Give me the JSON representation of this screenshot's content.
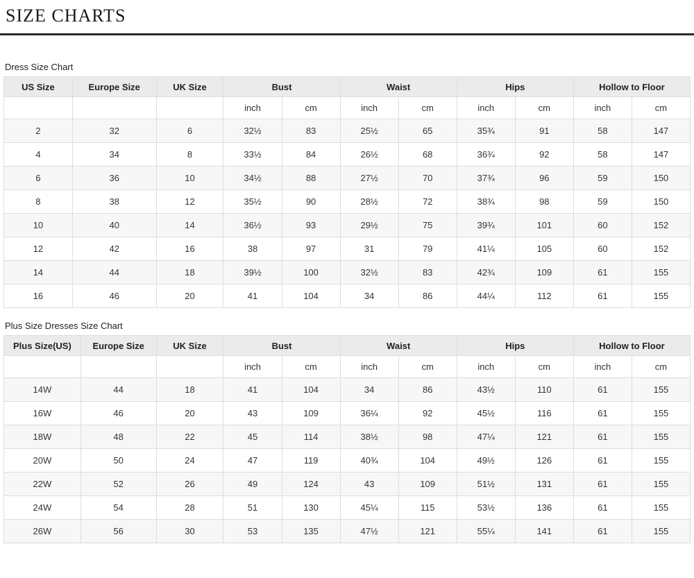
{
  "page": {
    "title": "SIZE CHARTS"
  },
  "tables": [
    {
      "caption": "Dress Size Chart",
      "header_groups": [
        {
          "label": "US Size",
          "span": 1
        },
        {
          "label": "Europe Size",
          "span": 1
        },
        {
          "label": "UK Size",
          "span": 1
        },
        {
          "label": "Bust",
          "span": 2
        },
        {
          "label": "Waist",
          "span": 2
        },
        {
          "label": "Hips",
          "span": 2
        },
        {
          "label": "Hollow to Floor",
          "span": 2
        }
      ],
      "subheader": [
        "",
        "",
        "",
        "inch",
        "cm",
        "inch",
        "cm",
        "inch",
        "cm",
        "inch",
        "cm"
      ],
      "rows": [
        [
          "2",
          "32",
          "6",
          "32½",
          "83",
          "25½",
          "65",
          "35¾",
          "91",
          "58",
          "147"
        ],
        [
          "4",
          "34",
          "8",
          "33½",
          "84",
          "26½",
          "68",
          "36¾",
          "92",
          "58",
          "147"
        ],
        [
          "6",
          "36",
          "10",
          "34½",
          "88",
          "27½",
          "70",
          "37¾",
          "96",
          "59",
          "150"
        ],
        [
          "8",
          "38",
          "12",
          "35½",
          "90",
          "28½",
          "72",
          "38¾",
          "98",
          "59",
          "150"
        ],
        [
          "10",
          "40",
          "14",
          "36½",
          "93",
          "29½",
          "75",
          "39¾",
          "101",
          "60",
          "152"
        ],
        [
          "12",
          "42",
          "16",
          "38",
          "97",
          "31",
          "79",
          "41¼",
          "105",
          "60",
          "152"
        ],
        [
          "14",
          "44",
          "18",
          "39½",
          "100",
          "32½",
          "83",
          "42¾",
          "109",
          "61",
          "155"
        ],
        [
          "16",
          "46",
          "20",
          "41",
          "104",
          "34",
          "86",
          "44¼",
          "112",
          "61",
          "155"
        ]
      ]
    },
    {
      "caption": "Plus Size Dresses Size Chart",
      "header_groups": [
        {
          "label": "Plus Size(US)",
          "span": 1
        },
        {
          "label": "Europe Size",
          "span": 1
        },
        {
          "label": "UK Size",
          "span": 1
        },
        {
          "label": "Bust",
          "span": 2
        },
        {
          "label": "Waist",
          "span": 2
        },
        {
          "label": "Hips",
          "span": 2
        },
        {
          "label": "Hollow to Floor",
          "span": 2
        }
      ],
      "subheader": [
        "",
        "",
        "",
        "inch",
        "cm",
        "inch",
        "cm",
        "inch",
        "cm",
        "inch",
        "cm"
      ],
      "rows": [
        [
          "14W",
          "44",
          "18",
          "41",
          "104",
          "34",
          "86",
          "43½",
          "110",
          "61",
          "155"
        ],
        [
          "16W",
          "46",
          "20",
          "43",
          "109",
          "36¼",
          "92",
          "45½",
          "116",
          "61",
          "155"
        ],
        [
          "18W",
          "48",
          "22",
          "45",
          "114",
          "38½",
          "98",
          "47¼",
          "121",
          "61",
          "155"
        ],
        [
          "20W",
          "50",
          "24",
          "47",
          "119",
          "40¾",
          "104",
          "49½",
          "126",
          "61",
          "155"
        ],
        [
          "22W",
          "52",
          "26",
          "49",
          "124",
          "43",
          "109",
          "51½",
          "131",
          "61",
          "155"
        ],
        [
          "24W",
          "54",
          "28",
          "51",
          "130",
          "45¼",
          "115",
          "53½",
          "136",
          "61",
          "155"
        ],
        [
          "26W",
          "56",
          "30",
          "53",
          "135",
          "47½",
          "121",
          "55¼",
          "141",
          "61",
          "155"
        ]
      ]
    }
  ]
}
